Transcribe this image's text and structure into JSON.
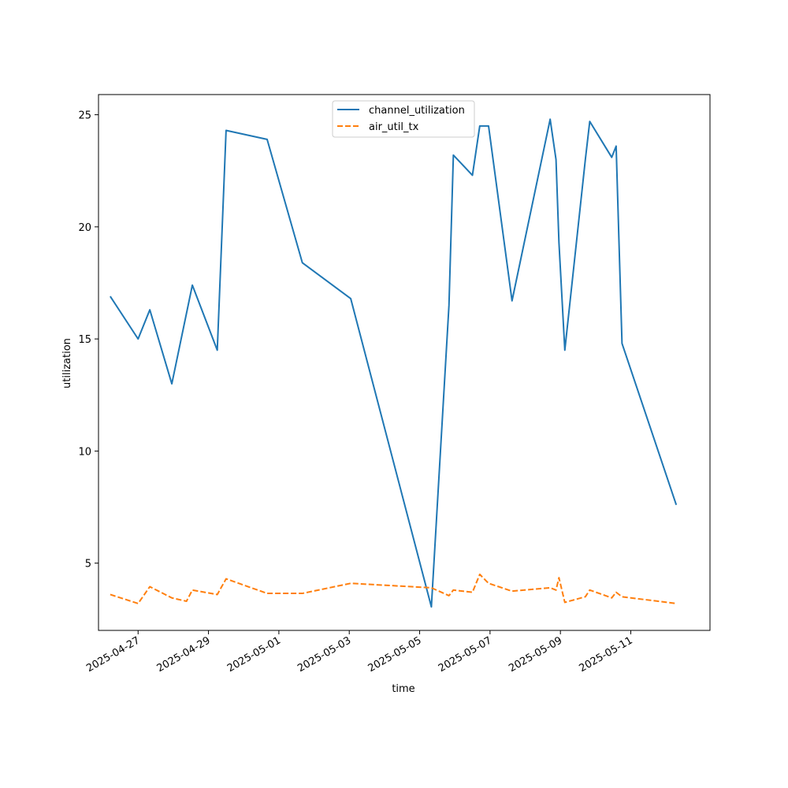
{
  "chart_data": {
    "type": "line",
    "title": "",
    "xlabel": "time",
    "ylabel": "utilization",
    "x_ticks": [
      "2025-04-27",
      "2025-04-29",
      "2025-05-01",
      "2025-05-03",
      "2025-05-05",
      "2025-05-07",
      "2025-05-09",
      "2025-05-11"
    ],
    "y_ticks": [
      5,
      10,
      15,
      20,
      25
    ],
    "xlim": [
      "2025-04-25 21:00",
      "2025-05-13 06:00"
    ],
    "ylim": [
      2.0,
      25.9
    ],
    "grid": false,
    "legend_position": "top-center",
    "series": [
      {
        "name": "channel_utilization",
        "color": "#1f77b4",
        "style": "solid",
        "points": [
          [
            "2025-04-26 05:00",
            16.9
          ],
          [
            "2025-04-27 00:00",
            15.0
          ],
          [
            "2025-04-27 08:00",
            16.3
          ],
          [
            "2025-04-27 23:00",
            13.0
          ],
          [
            "2025-04-28 13:00",
            17.4
          ],
          [
            "2025-04-29 06:00",
            14.5
          ],
          [
            "2025-04-29 12:00",
            24.3
          ],
          [
            "2025-04-30 16:00",
            23.9
          ],
          [
            "2025-05-01 16:00",
            18.4
          ],
          [
            "2025-05-03 01:00",
            16.8
          ],
          [
            "2025-05-05 08:00",
            3.05
          ],
          [
            "2025-05-05 20:00",
            16.5
          ],
          [
            "2025-05-05 23:00",
            23.2
          ],
          [
            "2025-05-06 12:00",
            22.3
          ],
          [
            "2025-05-06 17:00",
            24.5
          ],
          [
            "2025-05-06 23:00",
            24.5
          ],
          [
            "2025-05-07 15:00",
            16.7
          ],
          [
            "2025-05-08 17:00",
            24.8
          ],
          [
            "2025-05-08 21:00",
            23.0
          ],
          [
            "2025-05-08 23:00",
            19.3
          ],
          [
            "2025-05-09 03:00",
            14.5
          ],
          [
            "2025-05-09 17:00",
            23.0
          ],
          [
            "2025-05-09 20:00",
            24.7
          ],
          [
            "2025-05-10 11:00",
            23.1
          ],
          [
            "2025-05-10 14:00",
            23.6
          ],
          [
            "2025-05-10 18:00",
            14.8
          ],
          [
            "2025-05-12 07:00",
            7.6
          ]
        ]
      },
      {
        "name": "air_util_tx",
        "color": "#ff7f0e",
        "style": "dashed",
        "points": [
          [
            "2025-04-26 05:00",
            3.6
          ],
          [
            "2025-04-27 00:00",
            3.2
          ],
          [
            "2025-04-27 08:00",
            3.95
          ],
          [
            "2025-04-27 23:00",
            3.45
          ],
          [
            "2025-04-28 09:00",
            3.3
          ],
          [
            "2025-04-28 13:00",
            3.8
          ],
          [
            "2025-04-29 06:00",
            3.6
          ],
          [
            "2025-04-29 12:00",
            4.3
          ],
          [
            "2025-04-30 16:00",
            3.65
          ],
          [
            "2025-05-01 16:00",
            3.65
          ],
          [
            "2025-05-03 01:00",
            4.1
          ],
          [
            "2025-05-05 08:00",
            3.9
          ],
          [
            "2025-05-05 20:00",
            3.55
          ],
          [
            "2025-05-05 23:00",
            3.8
          ],
          [
            "2025-05-06 12:00",
            3.7
          ],
          [
            "2025-05-06 17:00",
            4.5
          ],
          [
            "2025-05-06 23:00",
            4.1
          ],
          [
            "2025-05-07 15:00",
            3.75
          ],
          [
            "2025-05-08 17:00",
            3.9
          ],
          [
            "2025-05-08 21:00",
            3.8
          ],
          [
            "2025-05-08 23:00",
            4.35
          ],
          [
            "2025-05-09 03:00",
            3.25
          ],
          [
            "2025-05-09 17:00",
            3.5
          ],
          [
            "2025-05-09 20:00",
            3.8
          ],
          [
            "2025-05-10 11:00",
            3.45
          ],
          [
            "2025-05-10 14:00",
            3.7
          ],
          [
            "2025-05-10 18:00",
            3.5
          ],
          [
            "2025-05-12 07:00",
            3.2
          ]
        ]
      }
    ]
  }
}
